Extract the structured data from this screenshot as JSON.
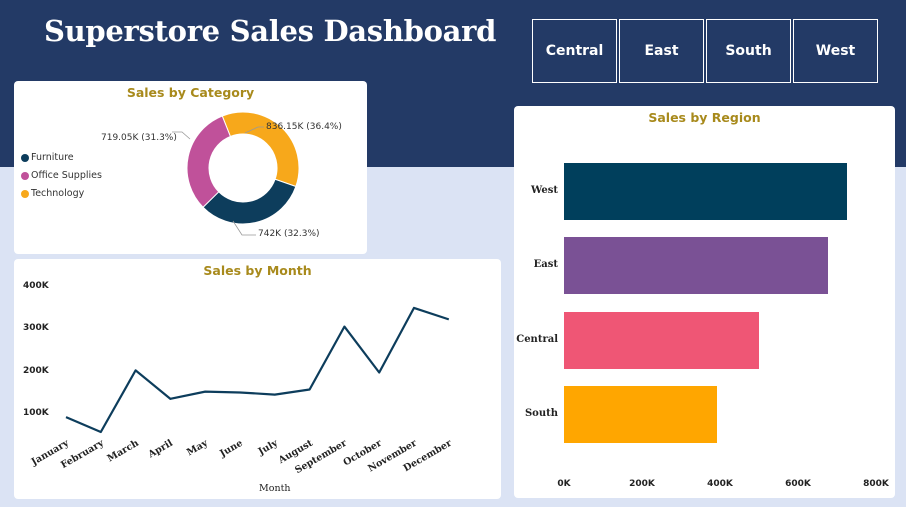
{
  "header": {
    "title": "Superstore Sales Dashboard"
  },
  "slicers": [
    "Central",
    "East",
    "South",
    "West"
  ],
  "category_card": {
    "title": "Sales by Category",
    "legend": [
      "Furniture",
      "Office Supplies",
      "Technology"
    ],
    "slice_labels": {
      "office": "719.05K (31.3%)",
      "technology": "836.15K (36.4%)",
      "furniture": "742K (32.3%)"
    }
  },
  "month_card": {
    "title": "Sales by Month",
    "y_ticks": [
      "400K",
      "300K",
      "200K",
      "100K"
    ],
    "x_title": "Month"
  },
  "region_card": {
    "title": "Sales by Region",
    "x_ticks": [
      "0K",
      "200K",
      "400K",
      "600K",
      "800K"
    ]
  },
  "colors": {
    "header": "#233a66",
    "page": "#dbe3f4",
    "title_gold": "#a88a1c",
    "furniture": "#0d3d5c",
    "office_supplies": "#c0519a",
    "technology": "#f7a81b",
    "west": "#003f5c",
    "east": "#7a5195",
    "central": "#ef5675",
    "south": "#ffa600"
  },
  "chart_data": [
    {
      "type": "pie",
      "title": "Sales by Category",
      "categories": [
        "Furniture",
        "Office Supplies",
        "Technology"
      ],
      "values": [
        742000,
        719050,
        836150
      ],
      "percents": [
        32.3,
        31.3,
        36.4
      ],
      "legend": "left"
    },
    {
      "type": "line",
      "title": "Sales by Month",
      "xlabel": "Month",
      "ylabel": "",
      "categories": [
        "January",
        "February",
        "March",
        "April",
        "May",
        "June",
        "July",
        "August",
        "September",
        "October",
        "November",
        "December"
      ],
      "values": [
        95000,
        60000,
        205000,
        138000,
        155000,
        153000,
        148000,
        160000,
        308000,
        200000,
        352000,
        325000
      ],
      "ylim": [
        40000,
        410000
      ],
      "y_ticks": [
        100000,
        200000,
        300000,
        400000
      ]
    },
    {
      "type": "bar",
      "orientation": "horizontal",
      "title": "Sales by Region",
      "categories": [
        "West",
        "East",
        "Central",
        "South"
      ],
      "values": [
        725000,
        678000,
        501000,
        392000
      ],
      "xlim": [
        0,
        800000
      ],
      "x_ticks": [
        "0K",
        "200K",
        "400K",
        "600K",
        "800K"
      ]
    }
  ]
}
